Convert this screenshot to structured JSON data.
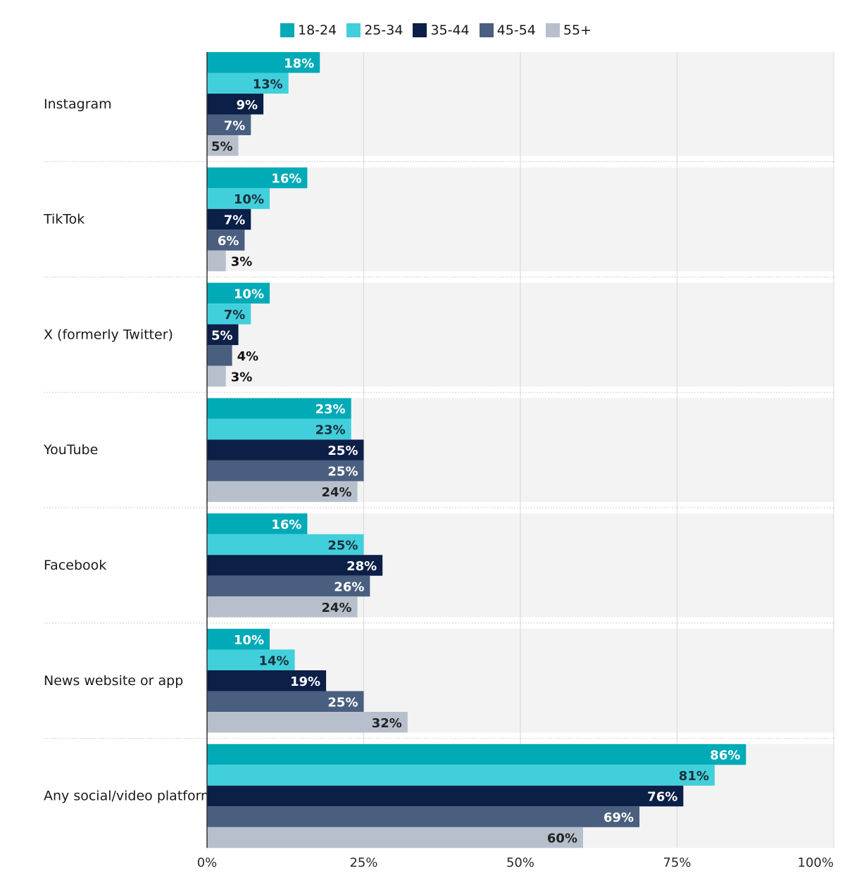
{
  "chart_data": {
    "type": "bar",
    "orientation": "horizontal",
    "title": "",
    "xlabel": "",
    "ylabel": "",
    "xlim": [
      0,
      100
    ],
    "xticks": [
      "0%",
      "25%",
      "50%",
      "75%",
      "100%"
    ],
    "grid": true,
    "legend_position": "top",
    "categories": [
      "Instagram",
      "TikTok",
      "X (formerly Twitter)",
      "YouTube",
      "Facebook",
      "News website or app",
      "Any social/video platform"
    ],
    "series": [
      {
        "name": "18-24",
        "color": "#00aab7",
        "label_color": "#ffffff",
        "values": [
          18,
          16,
          10,
          23,
          16,
          10,
          86
        ]
      },
      {
        "name": "25-34",
        "color": "#42cfdc",
        "label_color": "#1a2f3a",
        "values": [
          13,
          10,
          7,
          23,
          25,
          14,
          81
        ]
      },
      {
        "name": "35-44",
        "color": "#0b1f47",
        "label_color": "#ffffff",
        "values": [
          9,
          7,
          5,
          25,
          28,
          19,
          76
        ]
      },
      {
        "name": "45-54",
        "color": "#4a5f7f",
        "label_color": "#ffffff",
        "values": [
          7,
          6,
          4,
          25,
          26,
          25,
          69
        ]
      },
      {
        "name": "55+",
        "color": "#b8bfcc",
        "label_color": "#222222",
        "values": [
          5,
          3,
          3,
          24,
          24,
          32,
          60
        ]
      }
    ],
    "value_suffix": "%"
  }
}
